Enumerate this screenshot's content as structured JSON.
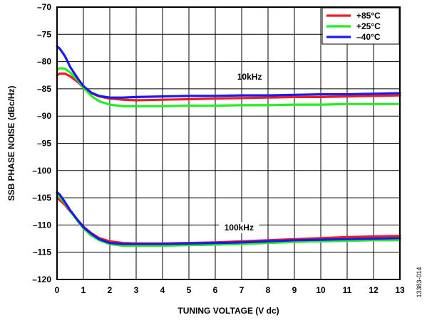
{
  "chart_data": {
    "type": "line",
    "xlabel": "TUNING VOLTAGE (V dc)",
    "ylabel": "SSB PHASE NOISE (dBc/Hz)",
    "xlim": [
      0,
      13
    ],
    "ylim": [
      -120,
      -70
    ],
    "x_ticks": [
      "0",
      "1",
      "2",
      "3",
      "4",
      "5",
      "6",
      "7",
      "8",
      "9",
      "10",
      "11",
      "12",
      "13"
    ],
    "y_ticks": [
      "–70",
      "–75",
      "–80",
      "–85",
      "–90",
      "–95",
      "–100",
      "–105",
      "–110",
      "–115",
      "–120"
    ],
    "grid": true,
    "legend_position": "top-right",
    "annotations": [
      "10kHz",
      "100kHz"
    ],
    "figure_id": "13383-014",
    "series": [
      {
        "name": "+85°C",
        "color": "#ee1c25",
        "offset": "10kHz",
        "x": [
          0,
          0.1,
          0.3,
          0.5,
          0.8,
          1.0,
          1.3,
          1.6,
          2.0,
          2.5,
          3,
          4,
          5,
          6,
          7,
          8,
          9,
          10,
          11,
          12,
          13
        ],
        "y": [
          -82.5,
          -82.2,
          -82.2,
          -82.7,
          -83.8,
          -84.8,
          -85.8,
          -86.4,
          -86.8,
          -87.0,
          -87.1,
          -87.0,
          -86.9,
          -86.8,
          -86.7,
          -86.6,
          -86.5,
          -86.5,
          -86.4,
          -86.3,
          -86.2
        ]
      },
      {
        "name": "+25°C",
        "color": "#22ee22",
        "offset": "10kHz",
        "x": [
          0,
          0.1,
          0.3,
          0.5,
          0.8,
          1.0,
          1.3,
          1.6,
          2.0,
          2.5,
          3,
          4,
          5,
          6,
          7,
          8,
          9,
          10,
          11,
          12,
          13
        ],
        "y": [
          -81.5,
          -81.2,
          -81.3,
          -82.0,
          -83.5,
          -84.8,
          -86.3,
          -87.3,
          -87.9,
          -88.2,
          -88.2,
          -88.2,
          -88.1,
          -88.1,
          -88.0,
          -88.0,
          -87.9,
          -87.9,
          -87.8,
          -87.8,
          -87.8
        ]
      },
      {
        "name": "–40°C",
        "color": "#1a1aee",
        "offset": "10kHz",
        "x": [
          0,
          0.1,
          0.3,
          0.5,
          0.8,
          1.0,
          1.3,
          1.6,
          2.0,
          2.5,
          3,
          4,
          5,
          6,
          7,
          8,
          9,
          10,
          11,
          12,
          13
        ],
        "y": [
          -77.2,
          -77.6,
          -79.0,
          -81.0,
          -83.2,
          -84.5,
          -85.7,
          -86.3,
          -86.6,
          -86.6,
          -86.5,
          -86.4,
          -86.3,
          -86.3,
          -86.2,
          -86.2,
          -86.1,
          -86.0,
          -86.0,
          -85.9,
          -85.8
        ]
      },
      {
        "name": "+85°C",
        "color": "#ee1c25",
        "offset": "100kHz",
        "x": [
          0,
          0.1,
          0.3,
          0.5,
          0.8,
          1.0,
          1.3,
          1.6,
          2.0,
          2.5,
          3,
          4,
          5,
          6,
          7,
          8,
          9,
          10,
          11,
          12,
          13
        ],
        "y": [
          -105.0,
          -105.4,
          -106.3,
          -107.5,
          -109.2,
          -110.3,
          -111.5,
          -112.4,
          -113.0,
          -113.3,
          -113.4,
          -113.4,
          -113.3,
          -113.2,
          -113.0,
          -112.8,
          -112.6,
          -112.4,
          -112.2,
          -112.1,
          -112.0
        ]
      },
      {
        "name": "+25°C",
        "color": "#22ee22",
        "offset": "100kHz",
        "x": [
          0,
          0.1,
          0.3,
          0.5,
          0.8,
          1.0,
          1.3,
          1.6,
          2.0,
          2.5,
          3,
          4,
          5,
          6,
          7,
          8,
          9,
          10,
          11,
          12,
          13
        ],
        "y": [
          -104.5,
          -104.9,
          -106.0,
          -107.4,
          -109.4,
          -110.6,
          -111.9,
          -112.8,
          -113.5,
          -113.8,
          -113.8,
          -113.8,
          -113.7,
          -113.6,
          -113.5,
          -113.3,
          -113.1,
          -113.0,
          -112.9,
          -112.8,
          -112.8
        ]
      },
      {
        "name": "–40°C",
        "color": "#1a1aee",
        "offset": "100kHz",
        "x": [
          0,
          0.1,
          0.3,
          0.5,
          0.8,
          1.0,
          1.3,
          1.6,
          2.0,
          2.5,
          3,
          4,
          5,
          6,
          7,
          8,
          9,
          10,
          11,
          12,
          13
        ],
        "y": [
          -104.0,
          -104.4,
          -105.8,
          -107.3,
          -109.2,
          -110.4,
          -111.6,
          -112.6,
          -113.3,
          -113.5,
          -113.5,
          -113.5,
          -113.4,
          -113.3,
          -113.2,
          -113.0,
          -112.8,
          -112.7,
          -112.6,
          -112.5,
          -112.4
        ]
      }
    ],
    "legend": [
      {
        "label": "+85°C",
        "color": "#ee1c25"
      },
      {
        "label": "+25°C",
        "color": "#22ee22"
      },
      {
        "label": "–40°C",
        "color": "#1a1aee"
      }
    ]
  }
}
